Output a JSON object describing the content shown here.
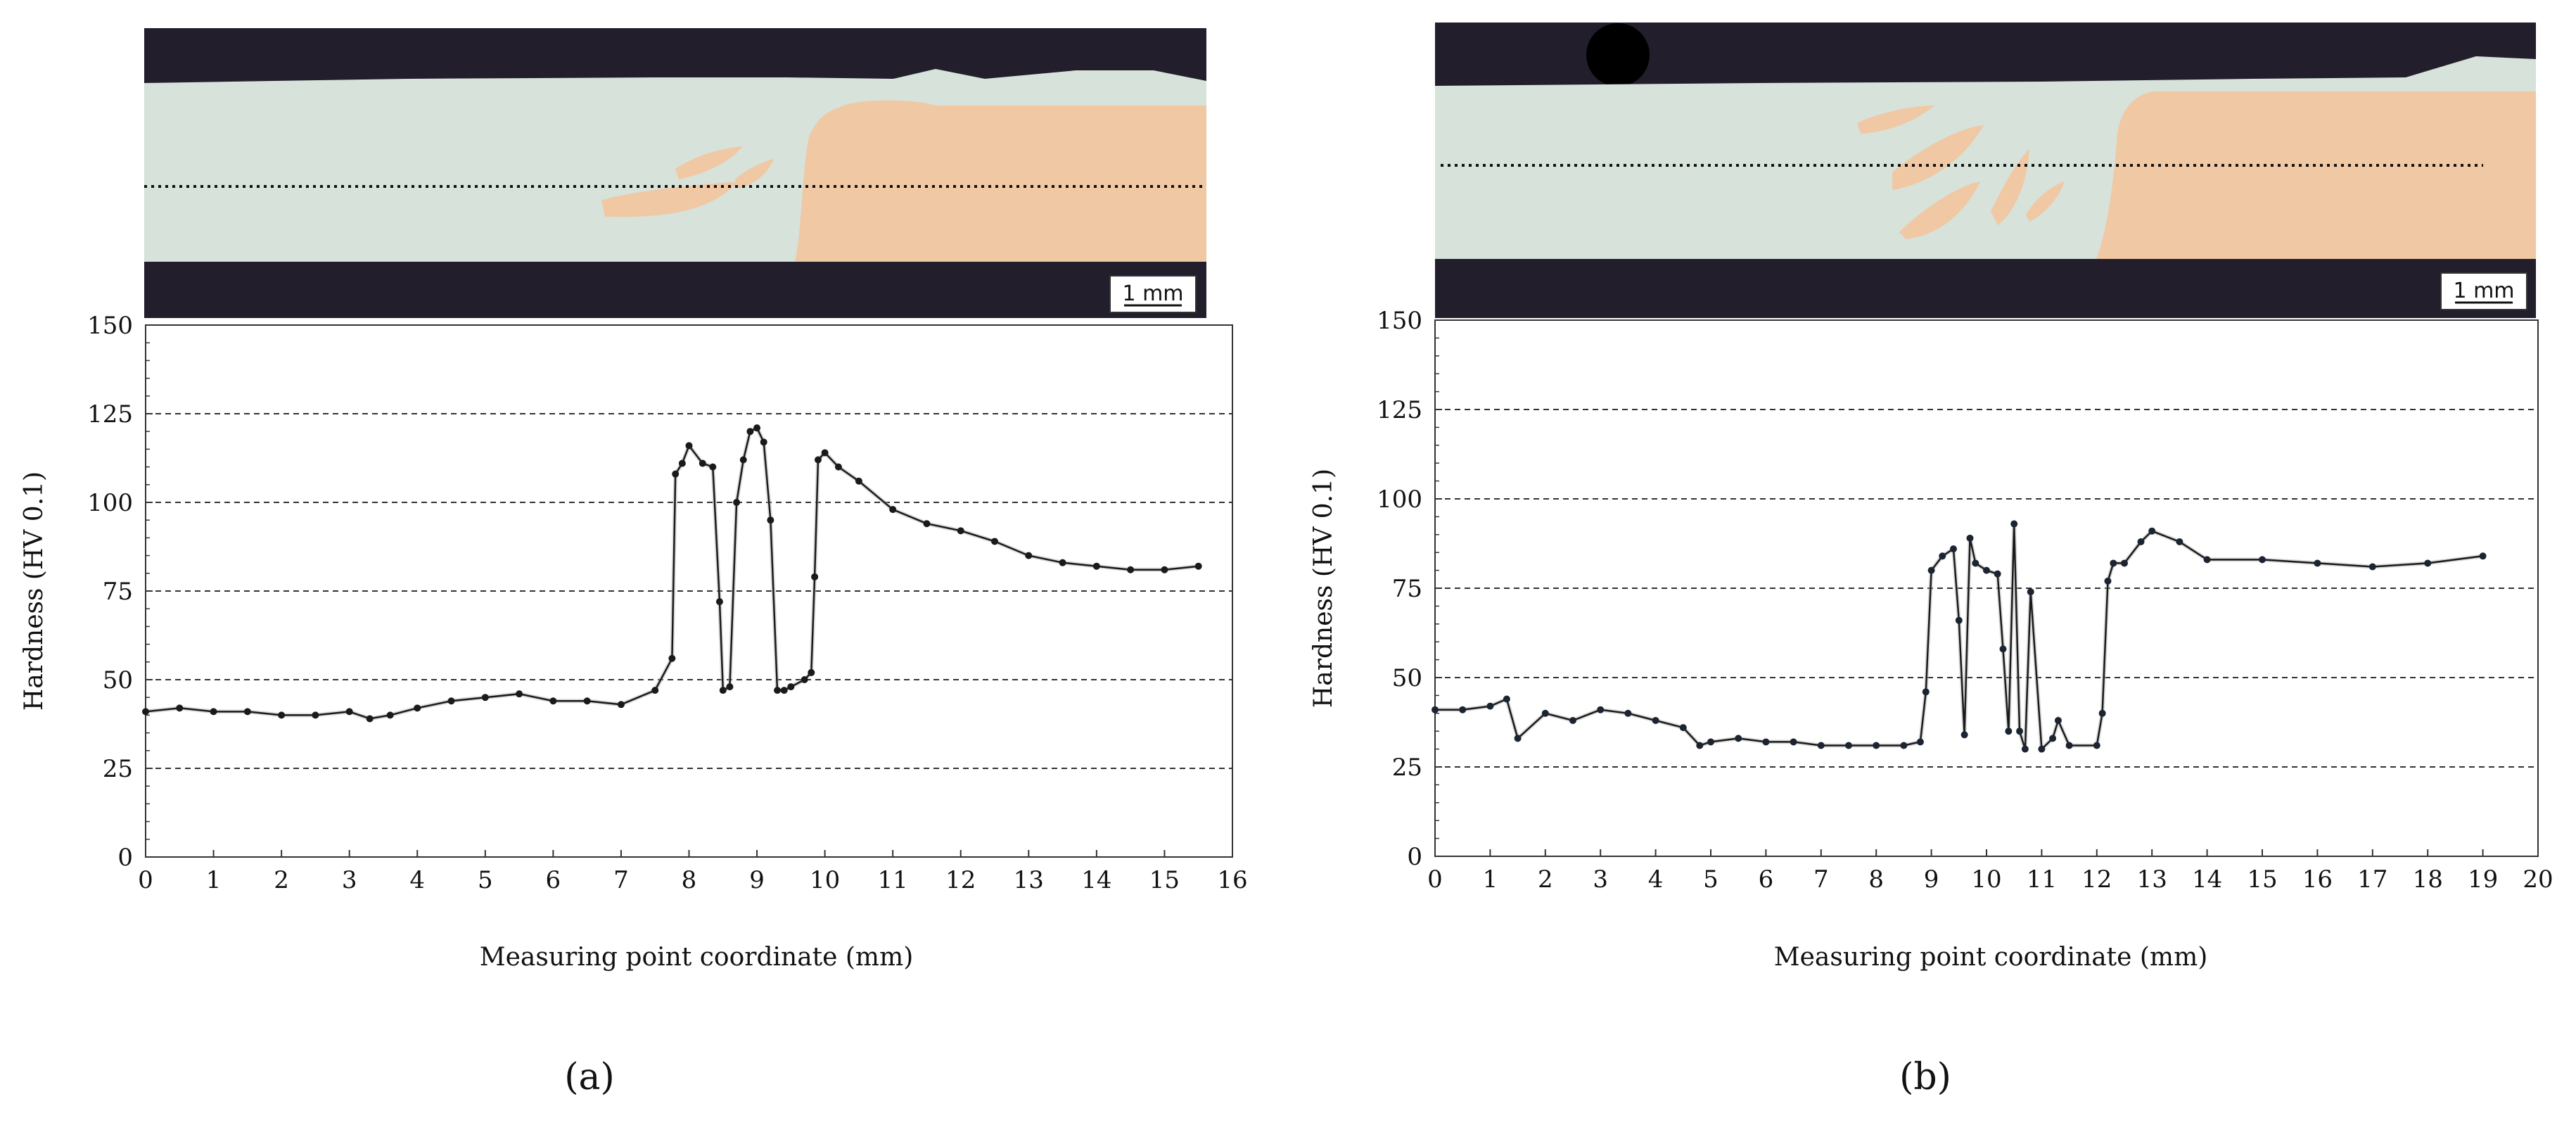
{
  "panels": [
    {
      "label": "(a)",
      "scale_bar": "1 mm",
      "micrograph": {
        "section_note": "weld cross-section micrograph with dotted measuring line"
      },
      "chart_data": {
        "type": "line",
        "xlabel": "Measuring point coordinate (mm)",
        "ylabel": "Hardness (HV 0.1)",
        "xlim": [
          0,
          16
        ],
        "ylim": [
          0,
          150
        ],
        "xticks": [
          0,
          1,
          2,
          3,
          4,
          5,
          6,
          7,
          8,
          9,
          10,
          11,
          12,
          13,
          14,
          15,
          16
        ],
        "yticks": [
          0,
          25,
          50,
          75,
          100,
          125,
          150
        ],
        "grid": "horizontal dashed",
        "series": [
          {
            "x": [
              0,
              0.5,
              1,
              1.5,
              2,
              2.5,
              3,
              3.3,
              3.6,
              4,
              4.5,
              5,
              5.5,
              6,
              6.5,
              7,
              7.5,
              7.75,
              7.8,
              7.9,
              8.0,
              8.2,
              8.35,
              8.45,
              8.5,
              8.6,
              8.7,
              8.8,
              8.9,
              9.0,
              9.1,
              9.2,
              9.3,
              9.4,
              9.5,
              9.7,
              9.8,
              9.85,
              9.9,
              10.0,
              10.2,
              10.5,
              11,
              11.5,
              12,
              12.5,
              13,
              13.5,
              14,
              14.5,
              15,
              15.5
            ],
            "y": [
              41,
              42,
              41,
              41,
              40,
              40,
              41,
              39,
              40,
              42,
              44,
              45,
              46,
              44,
              44,
              43,
              47,
              56,
              108,
              111,
              116,
              111,
              110,
              72,
              47,
              48,
              100,
              112,
              120,
              121,
              117,
              95,
              47,
              47,
              48,
              50,
              52,
              79,
              112,
              114,
              110,
              106,
              98,
              94,
              92,
              89,
              85,
              83,
              82,
              81,
              81,
              82
            ]
          }
        ]
      }
    },
    {
      "label": "(b)",
      "scale_bar": "1 mm",
      "micrograph": {
        "section_note": "weld cross-section micrograph with dotted measuring line"
      },
      "chart_data": {
        "type": "line",
        "xlabel": "Measuring point coordinate (mm)",
        "ylabel": "Hardness (HV 0.1)",
        "xlim": [
          0,
          20
        ],
        "ylim": [
          0,
          150
        ],
        "xticks": [
          0,
          1,
          2,
          3,
          4,
          5,
          6,
          7,
          8,
          9,
          10,
          11,
          12,
          13,
          14,
          15,
          16,
          17,
          18,
          19,
          20
        ],
        "yticks": [
          0,
          25,
          50,
          75,
          100,
          125,
          150
        ],
        "grid": "horizontal dashed",
        "series": [
          {
            "x": [
              0,
              0.5,
              1,
              1.3,
              1.5,
              2,
              2.5,
              3,
              3.5,
              4,
              4.5,
              4.8,
              5,
              5.5,
              6,
              6.5,
              7,
              7.5,
              8,
              8.5,
              8.8,
              8.9,
              9.0,
              9.2,
              9.4,
              9.5,
              9.6,
              9.7,
              9.8,
              10.0,
              10.2,
              10.3,
              10.4,
              10.5,
              10.6,
              10.7,
              10.8,
              11.0,
              11.2,
              11.3,
              11.5,
              12.0,
              12.1,
              12.2,
              12.3,
              12.5,
              12.8,
              13,
              13.5,
              14,
              15,
              16,
              17,
              18,
              19
            ],
            "y": [
              41,
              41,
              42,
              44,
              33,
              40,
              38,
              41,
              40,
              38,
              36,
              31,
              32,
              33,
              32,
              32,
              31,
              31,
              31,
              31,
              32,
              46,
              80,
              84,
              86,
              66,
              34,
              89,
              82,
              80,
              79,
              58,
              35,
              93,
              35,
              30,
              74,
              30,
              33,
              38,
              31,
              31,
              40,
              77,
              82,
              82,
              88,
              91,
              88,
              83,
              83,
              82,
              81,
              82,
              84
            ]
          }
        ]
      }
    }
  ]
}
